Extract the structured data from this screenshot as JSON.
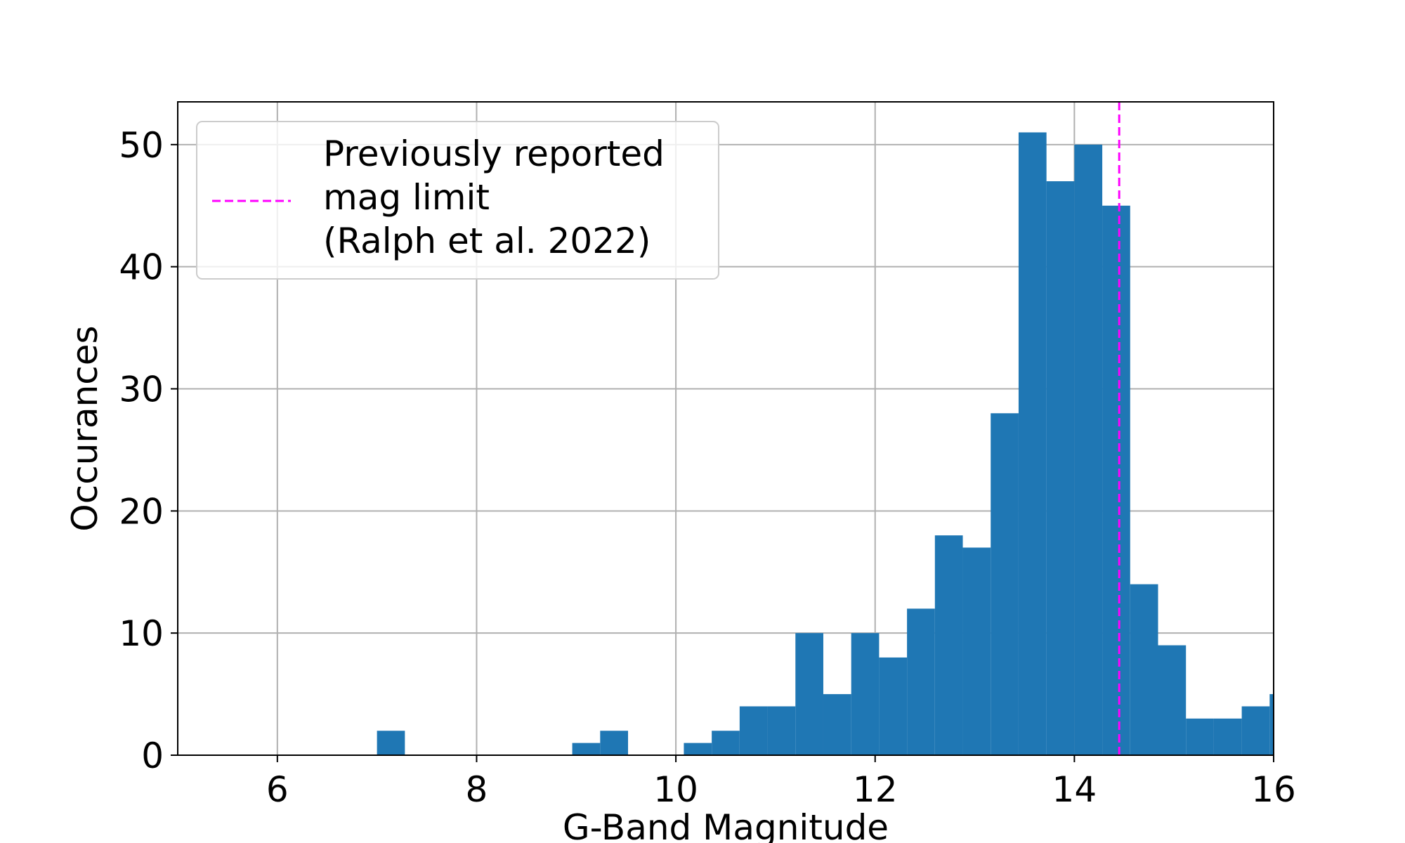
{
  "chart_data": {
    "type": "bar",
    "subtype": "histogram",
    "xlabel": "G-Band Magnitude",
    "ylabel": "Occurances",
    "xlim": [
      5,
      16
    ],
    "ylim": [
      0,
      53.5
    ],
    "xticks": [
      6,
      8,
      10,
      12,
      14,
      16
    ],
    "yticks": [
      0,
      10,
      20,
      30,
      40,
      50
    ],
    "grid": true,
    "bin_width": 0.28,
    "bins": [
      {
        "x0": 7.0,
        "x1": 7.28,
        "value": 2
      },
      {
        "x0": 8.96,
        "x1": 9.24,
        "value": 1
      },
      {
        "x0": 9.24,
        "x1": 9.52,
        "value": 2
      },
      {
        "x0": 10.08,
        "x1": 10.36,
        "value": 1
      },
      {
        "x0": 10.36,
        "x1": 10.64,
        "value": 2
      },
      {
        "x0": 10.64,
        "x1": 10.92,
        "value": 4
      },
      {
        "x0": 10.92,
        "x1": 11.2,
        "value": 4
      },
      {
        "x0": 11.2,
        "x1": 11.48,
        "value": 10
      },
      {
        "x0": 11.48,
        "x1": 11.76,
        "value": 5
      },
      {
        "x0": 11.76,
        "x1": 12.04,
        "value": 10
      },
      {
        "x0": 12.04,
        "x1": 12.32,
        "value": 8
      },
      {
        "x0": 12.32,
        "x1": 12.6,
        "value": 12
      },
      {
        "x0": 12.6,
        "x1": 12.88,
        "value": 18
      },
      {
        "x0": 12.88,
        "x1": 13.16,
        "value": 17
      },
      {
        "x0": 13.16,
        "x1": 13.44,
        "value": 28
      },
      {
        "x0": 13.44,
        "x1": 13.72,
        "value": 51
      },
      {
        "x0": 13.72,
        "x1": 14.0,
        "value": 47
      },
      {
        "x0": 14.0,
        "x1": 14.28,
        "value": 50
      },
      {
        "x0": 14.28,
        "x1": 14.56,
        "value": 45
      },
      {
        "x0": 14.56,
        "x1": 14.84,
        "value": 14
      },
      {
        "x0": 14.84,
        "x1": 15.12,
        "value": 9
      },
      {
        "x0": 15.12,
        "x1": 15.4,
        "value": 3
      },
      {
        "x0": 15.4,
        "x1": 15.68,
        "value": 3
      },
      {
        "x0": 15.68,
        "x1": 15.96,
        "value": 4
      },
      {
        "x0": 15.96,
        "x1": 16.24,
        "value": 5
      }
    ],
    "reference_line": {
      "x": 14.45,
      "style": "dashed",
      "color": "#ff00ff",
      "label_lines": [
        "Previously reported",
        "mag limit",
        "(Ralph et al. 2022)"
      ]
    },
    "bar_color": "#1f77b4",
    "legend_position": "upper-left"
  }
}
